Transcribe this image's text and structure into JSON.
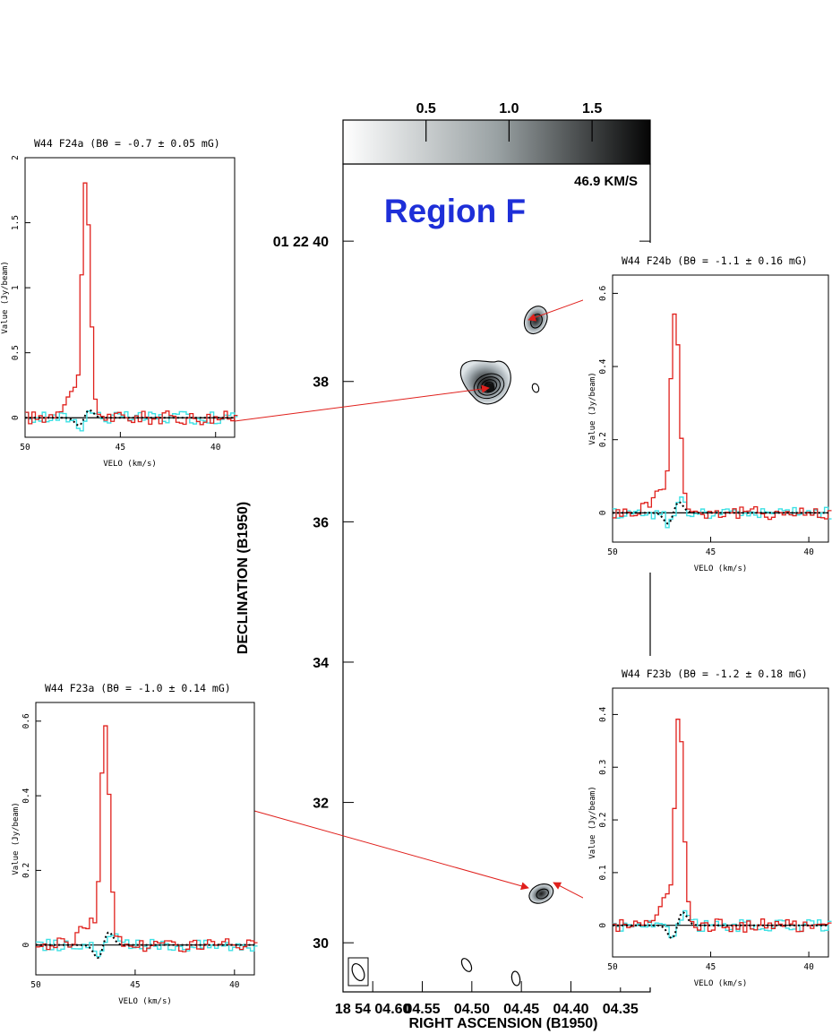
{
  "chart_data": [
    {
      "type": "contour-map",
      "title": "Region F",
      "xlabel": "RIGHT ASCENSION (B1950)",
      "ylabel": "DECLINATION (B1950)",
      "x_ticks": [
        {
          "value": 4.6,
          "label": "18 54 04.60"
        },
        {
          "value": 4.55,
          "label": "04.55"
        },
        {
          "value": 4.5,
          "label": "04.50"
        },
        {
          "value": 4.45,
          "label": "04.45"
        },
        {
          "value": 4.4,
          "label": "04.40"
        },
        {
          "value": 4.35,
          "label": "04.35"
        }
      ],
      "y_ticks": [
        {
          "value": 40,
          "label": "01 22 40"
        },
        {
          "value": 38,
          "label": "38"
        },
        {
          "value": 36,
          "label": "36"
        },
        {
          "value": 34,
          "label": "34"
        },
        {
          "value": 32,
          "label": "32"
        },
        {
          "value": 30,
          "label": "30"
        }
      ],
      "xlim": [
        4.63,
        4.32
      ],
      "ylim": [
        29.3,
        41.1
      ],
      "colorbar": {
        "ticks": [
          0.5,
          1.0,
          1.5
        ],
        "tick_labels": [
          "0.5",
          "1.0",
          "1.5"
        ],
        "range": [
          0.0,
          1.85
        ],
        "velocity_label": "46.9 KM/S"
      },
      "sources": [
        {
          "ra": 4.485,
          "dec": 37.95,
          "peak": 1.8
        },
        {
          "ra": 4.435,
          "dec": 38.8,
          "peak": 0.55
        },
        {
          "ra": 4.43,
          "dec": 30.7,
          "peak": 0.45
        }
      ]
    },
    {
      "type": "line",
      "title": "W44 F24a (Bθ = -0.7 ± 0.05 mG)",
      "xlabel": "VELO (km/s)",
      "ylabel": "Value (Jy/beam)",
      "xlim": [
        50,
        39
      ],
      "ylim": [
        -0.15,
        2.0
      ],
      "x_ticks": [
        50,
        45,
        40
      ],
      "y_ticks": [
        0,
        0.5,
        1,
        1.5,
        2
      ],
      "y_tick_labels": [
        "0",
        "0.5",
        "1",
        "1.5",
        "2"
      ],
      "peak_velocity": 46.9,
      "peak_value": 1.78,
      "stokes_v_amplitude": 0.12
    },
    {
      "type": "line",
      "title": "W44 F24b (Bθ = -1.1 ± 0.16 mG)",
      "xlabel": "VELO (km/s)",
      "ylabel": "Value (Jy/beam)",
      "xlim": [
        50,
        39
      ],
      "ylim": [
        -0.08,
        0.65
      ],
      "x_ticks": [
        50,
        45,
        40
      ],
      "y_ticks": [
        0,
        0.2,
        0.4,
        0.6
      ],
      "y_tick_labels": [
        "0",
        "0.2",
        "0.4",
        "0.6"
      ],
      "peak_velocity": 46.9,
      "peak_value": 0.57,
      "stokes_v_amplitude": 0.06
    },
    {
      "type": "line",
      "title": "W44 F23a (Bθ = -1.0 ± 0.14 mG)",
      "xlabel": "VELO (km/s)",
      "ylabel": "Value (Jy/beam)",
      "xlim": [
        50,
        39
      ],
      "ylim": [
        -0.08,
        0.65
      ],
      "x_ticks": [
        50,
        45,
        40
      ],
      "y_ticks": [
        0,
        0.2,
        0.4,
        0.6
      ],
      "y_tick_labels": [
        "0",
        "0.2",
        "0.4",
        "0.6"
      ],
      "peak_velocity": 46.6,
      "peak_value": 0.58,
      "stokes_v_amplitude": 0.07
    },
    {
      "type": "line",
      "title": "W44 F23b (Bθ = -1.2 ± 0.18 mG)",
      "xlabel": "VELO (km/s)",
      "ylabel": "Value (Jy/beam)",
      "xlim": [
        50,
        39
      ],
      "ylim": [
        -0.06,
        0.45
      ],
      "x_ticks": [
        50,
        45,
        40
      ],
      "y_ticks": [
        0,
        0.1,
        0.2,
        0.3,
        0.4
      ],
      "y_tick_labels": [
        "0",
        "0.1",
        "0.2",
        "0.3",
        "0.4"
      ],
      "peak_velocity": 46.7,
      "peak_value": 0.41,
      "stokes_v_amplitude": 0.05
    }
  ],
  "colors": {
    "stokes_i": "#e0201c",
    "stokes_v": "#3ee0e4",
    "fit": "#000000",
    "title_blue": "#1e2fd8",
    "arrow": "#e0201c"
  }
}
